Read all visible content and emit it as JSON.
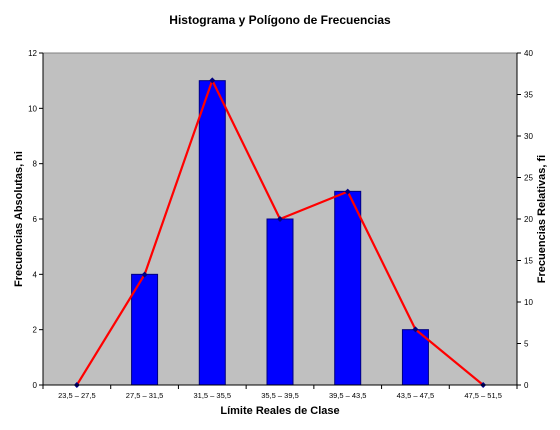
{
  "chart_data": {
    "type": "bar",
    "title": "Histograma y Polígono de Frecuencias",
    "xlabel": "Límite Reales de Clase",
    "ylabel": "Frecuencias Absolutas, ni",
    "y2label": "Frecuencias Relativas, fi",
    "categories": [
      "23,5 – 27,5",
      "27,5 – 31,5",
      "31,5 – 35,5",
      "35,5 – 39,5",
      "39,5 – 43,5",
      "43,5 – 47,5",
      "47,5 – 51,5"
    ],
    "ylim": [
      0,
      12
    ],
    "yticks": [
      0,
      2,
      4,
      6,
      8,
      10,
      12
    ],
    "y2lim": [
      0,
      40
    ],
    "y2ticks": [
      0,
      5,
      10,
      15,
      20,
      25,
      30,
      35,
      40
    ],
    "series": [
      {
        "name": "Frecuencias Absolutas, ni",
        "type": "bar",
        "axis": "left",
        "values": [
          0,
          4,
          11,
          6,
          7,
          2,
          0
        ]
      },
      {
        "name": "Frecuencias Relativas, fi",
        "type": "line",
        "axis": "right",
        "values": [
          0,
          13.3,
          36.7,
          20.0,
          23.3,
          6.7,
          0
        ]
      }
    ],
    "colors": {
      "plot_bg": "#c0c0c0",
      "bar": "#0000ff",
      "bar_edge": "#00007f",
      "line": "#ff0000",
      "marker": "#00007f"
    },
    "grid": false,
    "legend": "none"
  }
}
